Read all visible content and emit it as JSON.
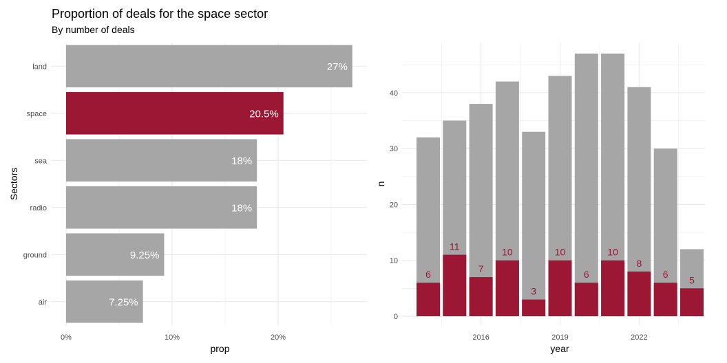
{
  "page": {
    "title": "Proportion of deals for the space sector",
    "subtitle": "By number of deals"
  },
  "colors": {
    "highlight": "#9B1734",
    "base": "#A6A6A6",
    "grid": "#EBEBEB",
    "axis_text": "#4D4D4D"
  },
  "chart_data": [
    {
      "type": "bar",
      "orientation": "horizontal",
      "xlabel": "prop",
      "ylabel": "Sectors",
      "categories": [
        "land",
        "space",
        "sea",
        "radio",
        "ground",
        "air"
      ],
      "values": [
        0.27,
        0.205,
        0.18,
        0.18,
        0.0925,
        0.0725
      ],
      "labels": [
        "27%",
        "20.5%",
        "18%",
        "18%",
        "9.25%",
        "7.25%"
      ],
      "highlight": "space",
      "xlim": [
        0,
        0.283
      ],
      "xticks": [
        0,
        0.1,
        0.2
      ],
      "xtick_labels": [
        "0%",
        "10%",
        "20%"
      ],
      "grid": true
    },
    {
      "type": "bar",
      "orientation": "vertical",
      "xlabel": "year",
      "ylabel": "n",
      "x": [
        2014,
        2015,
        2016,
        2017,
        2018,
        2019,
        2020,
        2021,
        2022,
        2023,
        2024
      ],
      "series": [
        {
          "values": [
            32,
            35,
            38,
            42,
            33,
            43,
            47,
            47,
            41,
            30,
            12
          ]
        },
        {
          "values": [
            6,
            11,
            7,
            10,
            3,
            10,
            6,
            10,
            8,
            6,
            5
          ]
        }
      ],
      "ylim": [
        0,
        49.35
      ],
      "yticks": [
        0,
        10,
        20,
        30,
        40
      ],
      "xticks": [
        2016,
        2019,
        2022
      ],
      "grid": true
    }
  ]
}
